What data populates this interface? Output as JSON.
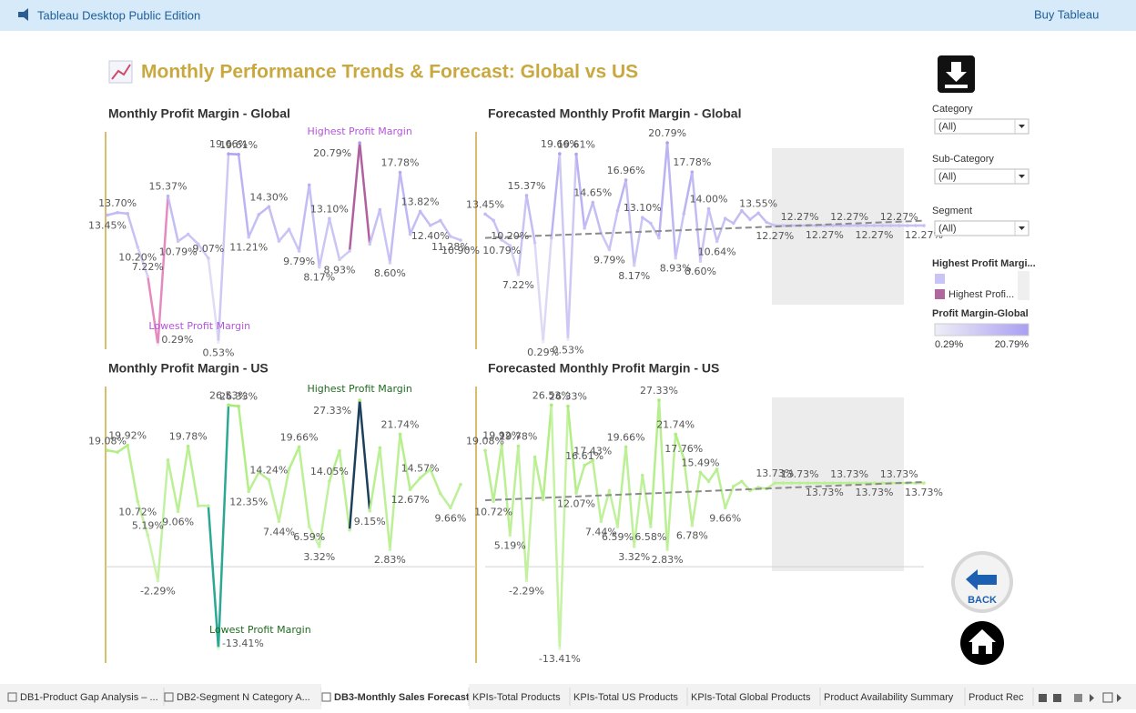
{
  "header": {
    "product": "Tableau Desktop Public Edition",
    "buy": "Buy Tableau"
  },
  "title": "Monthly Performance Trends & Forecast: Global vs US",
  "chart_data": [
    {
      "type": "line",
      "title": "Monthly Profit Margin - Global",
      "values": [
        13.45,
        13.7,
        13.6,
        10.2,
        7.22,
        0.29,
        15.37,
        10.79,
        11.5,
        10.5,
        9.07,
        0.53,
        19.66,
        19.61,
        11.21,
        13.5,
        14.3,
        10.8,
        12,
        9.79,
        16.5,
        8.17,
        13.1,
        8.93,
        9.8,
        20.79,
        10.5,
        14,
        8.6,
        17.78,
        11.5,
        13.82,
        12.4,
        12.9,
        11.28,
        10.9
      ],
      "value_labels": [
        "13.45%",
        "13.70%",
        null,
        "10.20%",
        "7.22%",
        "0.29%",
        "15.37%",
        "10.79%",
        null,
        null,
        "9.07%",
        "0.53%",
        "19.66%",
        "19.61%",
        "11.21%",
        null,
        "14.30%",
        null,
        null,
        "9.79%",
        null,
        "8.17%",
        "13.10%",
        "8.93%",
        null,
        "20.79%",
        null,
        null,
        "8.60%",
        "17.78%",
        null,
        "13.82%",
        "12.40%",
        null,
        "11.28%",
        "10.90%"
      ],
      "annotations": {
        "highest": "Highest Profit Margin",
        "lowest": "Lowest Profit Margin"
      },
      "annotation_color": "#b257d6",
      "color_range": [
        "#eeeef6",
        "#a99ff2"
      ],
      "highest_color": "#b0609f",
      "lowest_color": "#e58ac0"
    },
    {
      "type": "line",
      "title": "Forecasted Monthly Profit Margin - Global",
      "values": [
        13.45,
        12.8,
        10.79,
        10.2,
        7.22,
        15.37,
        10.5,
        0.29,
        11,
        19.66,
        0.53,
        19.61,
        12,
        14.65,
        11.5,
        9.79,
        13.8,
        16.96,
        8.17,
        13.1,
        12.5,
        11,
        20.79,
        8.93,
        13.5,
        17.78,
        8.6,
        14,
        10.64,
        13,
        12.5,
        13.8,
        12.9,
        13.55,
        12.6,
        12.27
      ],
      "value_labels": [
        "13.45%",
        null,
        "10.79%",
        "10.20%",
        "7.22%",
        "15.37%",
        null,
        "0.29%",
        null,
        "19.66%",
        "0.53%",
        "19.61%",
        null,
        "14.65%",
        null,
        "9.79%",
        null,
        "16.96%",
        "8.17%",
        "13.10%",
        null,
        null,
        "20.79%",
        "8.93%",
        null,
        "17.78%",
        "8.60%",
        "14.00%",
        "10.64%",
        null,
        null,
        null,
        null,
        "13.55%",
        null,
        "12.27%"
      ],
      "forecast": [
        12.27,
        12.27,
        12.27,
        12.27,
        12.27,
        12.27,
        12.27,
        12.27,
        12.27,
        12.27,
        12.27,
        12.27,
        12.27,
        12.27,
        12.27,
        12.27,
        12.27,
        12.27
      ],
      "forecast_labels": [
        null,
        null,
        "12.27%",
        null,
        null,
        "12.27%",
        null,
        null,
        "12.27%",
        null,
        null,
        "12.27%",
        null,
        null,
        "12.27%",
        null,
        null,
        "12.27%"
      ],
      "trend": [
        11,
        12.77
      ],
      "trend_color": "#8a8a8a",
      "color_range": [
        "#eeeef6",
        "#a99ff2"
      ]
    },
    {
      "type": "line",
      "title": "Monthly Profit Margin - US",
      "values": [
        19.08,
        18.8,
        19.92,
        10.72,
        5.19,
        -2.29,
        17.5,
        9.06,
        19.78,
        10,
        10,
        -13.41,
        26.53,
        26.33,
        12.35,
        15.5,
        14.24,
        7.44,
        16,
        19.66,
        6.59,
        3.32,
        14.05,
        19,
        6,
        27.33,
        9.15,
        19.5,
        2.83,
        21.74,
        12.67,
        14.57,
        16,
        12,
        9.66,
        13.5
      ],
      "value_labels": [
        "19.08%",
        null,
        "19.92%",
        "10.72%",
        "5.19%",
        "-2.29%",
        null,
        "9.06%",
        "19.78%",
        null,
        null,
        "-13.41%",
        "26.53%",
        "26.33%",
        "12.35%",
        null,
        "14.24%",
        "7.44%",
        null,
        "19.66%",
        "6.59%",
        "3.32%",
        "14.05%",
        null,
        null,
        "27.33%",
        "9.15%",
        null,
        "2.83%",
        "21.74%",
        "12.67%",
        "14.57%",
        null,
        null,
        "9.66%",
        null
      ],
      "annotations": {
        "highest": "Highest Profit Margin",
        "lowest": "Lowest Profit Margin"
      },
      "annotation_color": "#1f6b1f",
      "color_range": [
        "#e2f7d0",
        "#a6ec74"
      ],
      "highest_color": "#1c3f5c",
      "lowest_color": "#2aa894"
    },
    {
      "type": "line",
      "title": "Forecasted Monthly Profit Margin - US",
      "values": [
        19.08,
        10.72,
        19.92,
        5.19,
        19.78,
        -2.29,
        18,
        11,
        26.53,
        -13.41,
        26.33,
        12.07,
        16.61,
        17.43,
        7.44,
        12.5,
        6.59,
        19.66,
        3.32,
        15,
        6.58,
        27.33,
        2.83,
        21.74,
        17.76,
        6.78,
        15.49,
        14,
        16,
        9.66,
        13.2,
        14,
        12.5,
        13,
        12.8,
        13.73
      ],
      "value_labels": [
        "19.08%",
        "10.72%",
        "19.92%",
        "5.19%",
        "19.78%",
        "-2.29%",
        null,
        null,
        "26.53%",
        "-13.41%",
        "26.33%",
        "12.07%",
        "16.61%",
        "17.43%",
        "7.44%",
        null,
        "6.59%",
        "19.66%",
        "3.32%",
        null,
        "6.58%",
        "27.33%",
        "2.83%",
        "21.74%",
        "17.76%",
        "6.78%",
        "15.49%",
        null,
        null,
        "9.66%",
        null,
        null,
        null,
        null,
        null,
        "13.73%"
      ],
      "forecast": [
        13.73,
        13.73,
        13.73,
        13.73,
        13.73,
        13.73,
        13.73,
        13.73,
        13.73,
        13.73,
        13.73,
        13.73,
        13.73,
        13.73,
        13.73,
        13.73,
        13.73,
        13.73
      ],
      "forecast_labels": [
        null,
        null,
        "13.73%",
        null,
        null,
        "13.73%",
        null,
        null,
        "13.73%",
        null,
        null,
        "13.73%",
        null,
        null,
        "13.73%",
        null,
        null,
        "13.73%"
      ],
      "trend": [
        10.9,
        13.9
      ],
      "trend_color": "#8a8a8a",
      "color_range": [
        "#e2f7d0",
        "#a6ec74"
      ]
    }
  ],
  "filters": [
    {
      "label": "Category",
      "value": "(All)"
    },
    {
      "label": "Sub-Category",
      "value": "(All)"
    },
    {
      "label": "Segment",
      "value": "(All)"
    }
  ],
  "legend_highest": {
    "title": "Highest Profit Margi...",
    "items": [
      {
        "color": "#cac3f6"
      },
      {
        "label": "Highest Profi...",
        "color": "#b0679e"
      }
    ]
  },
  "legend_color": {
    "title": "Profit Margin-Global",
    "min_label": "0.29%",
    "max_label": "20.79%"
  },
  "buttons": {
    "back": "BACK"
  },
  "tabs": [
    "DB1-Product Gap Analysis – ...",
    "DB2-Segment N Category A...",
    "DB3-Monthly Sales Forecast",
    "KPIs-Total Products",
    "KPIs-Total US Products",
    "KPIs-Total Global Products",
    "Product Availability Summary",
    "Product Rec"
  ],
  "active_tab": 2
}
